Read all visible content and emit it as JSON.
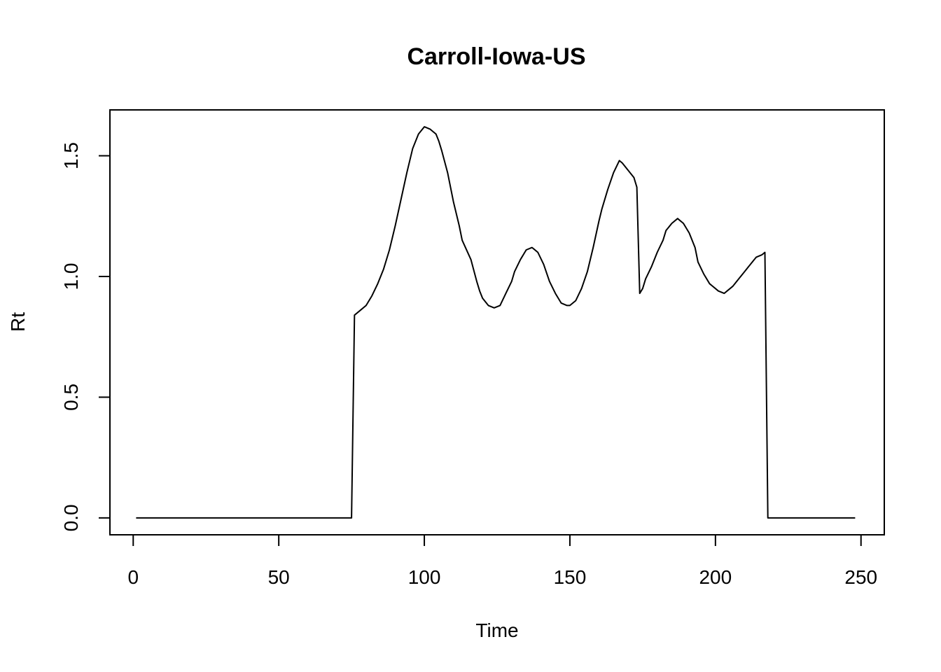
{
  "chart_data": {
    "type": "line",
    "title": "Carroll-Iowa-US",
    "xlabel": "Time",
    "ylabel": "Rt",
    "xlim": [
      -8,
      258
    ],
    "ylim": [
      -0.07,
      1.69
    ],
    "x_ticks": [
      0,
      50,
      100,
      150,
      200,
      250
    ],
    "y_ticks": [
      0.0,
      0.5,
      1.0,
      1.5
    ],
    "x_tick_labels": [
      "0",
      "50",
      "100",
      "150",
      "200",
      "250"
    ],
    "y_tick_labels": [
      "0.0",
      "0.5",
      "1.0",
      "1.5"
    ],
    "grid": false,
    "legend": "none",
    "series": [
      {
        "color": "#000000",
        "x": [
          1,
          75,
          76,
          78,
          80,
          82,
          84,
          86,
          88,
          90,
          92,
          94,
          96,
          98,
          100,
          102,
          104,
          105,
          106,
          108,
          110,
          112,
          113,
          116,
          118,
          119,
          120,
          122,
          124,
          126,
          128,
          130,
          131,
          133,
          135,
          137,
          139,
          141,
          143,
          145,
          147,
          149,
          150,
          152,
          154,
          156,
          158,
          160,
          161,
          163,
          165,
          167,
          168,
          170,
          172,
          173,
          174,
          175,
          176,
          178,
          180,
          182,
          183,
          185,
          187,
          189,
          191,
          193,
          194,
          196,
          198,
          200,
          201,
          203,
          204,
          206,
          208,
          210,
          212,
          214,
          216,
          217,
          218,
          248
        ],
        "values": [
          0.0,
          0.0,
          0.84,
          0.86,
          0.88,
          0.92,
          0.97,
          1.03,
          1.11,
          1.21,
          1.32,
          1.43,
          1.53,
          1.59,
          1.62,
          1.61,
          1.59,
          1.56,
          1.52,
          1.43,
          1.31,
          1.21,
          1.15,
          1.07,
          0.98,
          0.94,
          0.91,
          0.88,
          0.87,
          0.88,
          0.93,
          0.98,
          1.02,
          1.07,
          1.11,
          1.12,
          1.1,
          1.05,
          0.98,
          0.93,
          0.89,
          0.88,
          0.88,
          0.9,
          0.95,
          1.02,
          1.12,
          1.23,
          1.28,
          1.36,
          1.43,
          1.48,
          1.47,
          1.44,
          1.41,
          1.37,
          0.93,
          0.95,
          0.99,
          1.04,
          1.1,
          1.15,
          1.19,
          1.22,
          1.24,
          1.22,
          1.18,
          1.12,
          1.06,
          1.01,
          0.97,
          0.95,
          0.94,
          0.93,
          0.94,
          0.96,
          0.99,
          1.02,
          1.05,
          1.08,
          1.09,
          1.1,
          0.0,
          0.0
        ]
      }
    ]
  }
}
